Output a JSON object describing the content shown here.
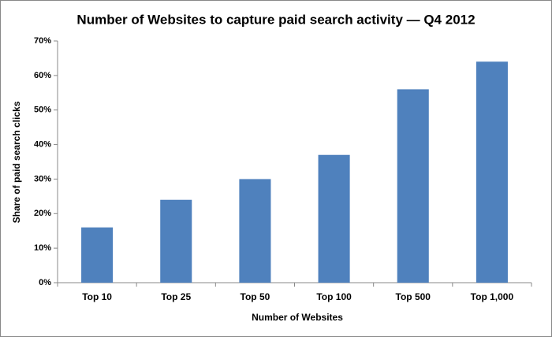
{
  "chart_data": {
    "type": "bar",
    "title": "Number of Websites to capture paid search activity — Q4 2012",
    "x_label": "Number of Websites",
    "y_label": "Share of paid search clicks",
    "categories": [
      "Top 10",
      "Top 25",
      "Top 50",
      "Top 100",
      "Top 500",
      "Top 1,000"
    ],
    "values": [
      16,
      24,
      30,
      37,
      56,
      64
    ],
    "color": "#4f81bd",
    "ylim": [
      0,
      70
    ],
    "yticks": [
      {
        "value": 0,
        "label": "0%"
      },
      {
        "value": 10,
        "label": "10%"
      },
      {
        "value": 20,
        "label": "20%"
      },
      {
        "value": 30,
        "label": "30%"
      },
      {
        "value": 40,
        "label": "40%"
      },
      {
        "value": 50,
        "label": "50%"
      },
      {
        "value": 60,
        "label": "60%"
      },
      {
        "value": 70,
        "label": "70%"
      }
    ],
    "grid": false
  }
}
